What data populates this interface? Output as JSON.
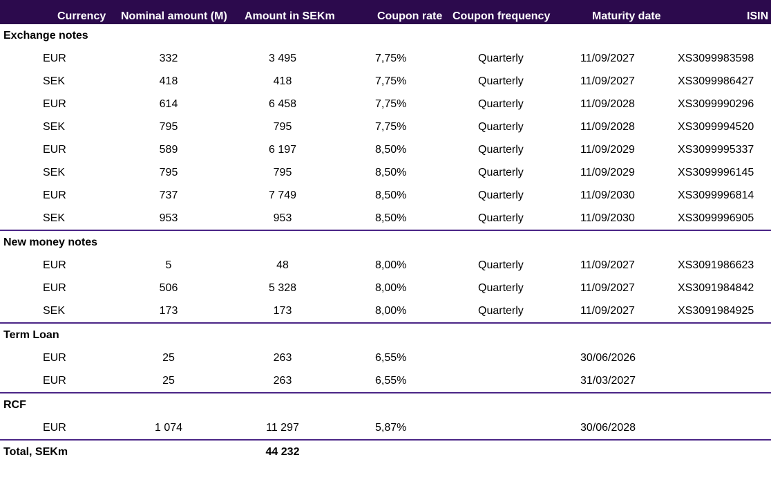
{
  "header": {
    "currency": "Currency",
    "nominal": "Nominal amount (M)",
    "amount_sek": "Amount in SEKm",
    "coupon_rate": "Coupon rate",
    "coupon_frequency": "Coupon frequency",
    "maturity": "Maturity date",
    "isin": "ISIN"
  },
  "sections": [
    {
      "title": "Exchange notes",
      "rows": [
        {
          "currency": "EUR",
          "nominal": "332",
          "amount_sek": "3 495",
          "coupon_rate": "7,75%",
          "frequency": "Quarterly",
          "maturity": "11/09/2027",
          "isin": "XS3099983598"
        },
        {
          "currency": "SEK",
          "nominal": "418",
          "amount_sek": "418",
          "coupon_rate": "7,75%",
          "frequency": "Quarterly",
          "maturity": "11/09/2027",
          "isin": "XS3099986427"
        },
        {
          "currency": "EUR",
          "nominal": "614",
          "amount_sek": "6 458",
          "coupon_rate": "7,75%",
          "frequency": "Quarterly",
          "maturity": "11/09/2028",
          "isin": "XS3099990296"
        },
        {
          "currency": "SEK",
          "nominal": "795",
          "amount_sek": "795",
          "coupon_rate": "7,75%",
          "frequency": "Quarterly",
          "maturity": "11/09/2028",
          "isin": "XS3099994520"
        },
        {
          "currency": "EUR",
          "nominal": "589",
          "amount_sek": "6 197",
          "coupon_rate": "8,50%",
          "frequency": "Quarterly",
          "maturity": "11/09/2029",
          "isin": "XS3099995337"
        },
        {
          "currency": "SEK",
          "nominal": "795",
          "amount_sek": "795",
          "coupon_rate": "8,50%",
          "frequency": "Quarterly",
          "maturity": "11/09/2029",
          "isin": "XS3099996145"
        },
        {
          "currency": "EUR",
          "nominal": "737",
          "amount_sek": "7 749",
          "coupon_rate": "8,50%",
          "frequency": "Quarterly",
          "maturity": "11/09/2030",
          "isin": "XS3099996814"
        },
        {
          "currency": "SEK",
          "nominal": "953",
          "amount_sek": "953",
          "coupon_rate": "8,50%",
          "frequency": "Quarterly",
          "maturity": "11/09/2030",
          "isin": "XS3099996905"
        }
      ]
    },
    {
      "title": "New money notes",
      "rows": [
        {
          "currency": "EUR",
          "nominal": "5",
          "amount_sek": "48",
          "coupon_rate": "8,00%",
          "frequency": "Quarterly",
          "maturity": "11/09/2027",
          "isin": "XS3091986623"
        },
        {
          "currency": "EUR",
          "nominal": "506",
          "amount_sek": "5 328",
          "coupon_rate": "8,00%",
          "frequency": "Quarterly",
          "maturity": "11/09/2027",
          "isin": "XS3091984842"
        },
        {
          "currency": "SEK",
          "nominal": "173",
          "amount_sek": "173",
          "coupon_rate": "8,00%",
          "frequency": "Quarterly",
          "maturity": "11/09/2027",
          "isin": "XS3091984925"
        }
      ]
    },
    {
      "title": "Term Loan",
      "rows": [
        {
          "currency": "EUR",
          "nominal": "25",
          "amount_sek": "263",
          "coupon_rate": "6,55%",
          "frequency": "",
          "maturity": "30/06/2026",
          "isin": ""
        },
        {
          "currency": "EUR",
          "nominal": "25",
          "amount_sek": "263",
          "coupon_rate": "6,55%",
          "frequency": "",
          "maturity": "31/03/2027",
          "isin": ""
        }
      ]
    },
    {
      "title": "RCF",
      "rows": [
        {
          "currency": "EUR",
          "nominal": "1 074",
          "amount_sek": "11 297",
          "coupon_rate": "5,87%",
          "frequency": "",
          "maturity": "30/06/2028",
          "isin": ""
        }
      ]
    }
  ],
  "total": {
    "label": "Total, SEKm",
    "amount_sek": "44 232"
  },
  "colors": {
    "header_bg": "#2c0a4d",
    "divider": "#4a2586"
  }
}
